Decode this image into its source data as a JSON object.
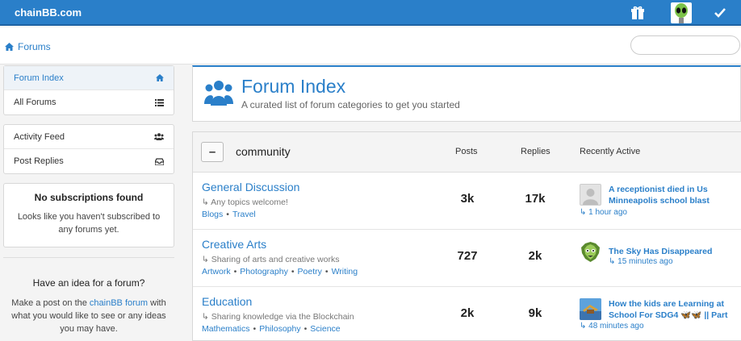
{
  "navbar": {
    "brand": "chainBB.com",
    "gift_icon": "gift-icon",
    "avatar_icon": "alien-avatar-icon",
    "check_icon": "check-icon",
    "accent": "#2a7fc9"
  },
  "breadcrumb": {
    "icon": "home-icon",
    "label": "Forums"
  },
  "search": {
    "placeholder": "",
    "value": ""
  },
  "sidebar": {
    "group1": [
      {
        "label": "Forum Index",
        "icon": "home-icon",
        "active": true
      },
      {
        "label": "All Forums",
        "icon": "list-icon",
        "active": false
      }
    ],
    "group2": [
      {
        "label": "Activity Feed",
        "icon": "users-icon"
      },
      {
        "label": "Post Replies",
        "icon": "inbox-icon"
      }
    ],
    "no_subs": {
      "title": "No subscriptions found",
      "text": "Looks like you haven't subscribed to any forums yet."
    },
    "idea": {
      "title": "Have an idea for a forum?",
      "text_before": "Make a post on the ",
      "link": "chainBB forum",
      "text_after": " with what you would like to see or any ideas you may have."
    }
  },
  "header": {
    "icon": "users-icon",
    "title": "Forum Index",
    "subtitle": "A curated list of forum categories to get you started"
  },
  "category": {
    "collapse_label": "–",
    "name": "community",
    "columns": {
      "posts": "Posts",
      "replies": "Replies",
      "recent": "Recently Active"
    },
    "forums": [
      {
        "name": "General Discussion",
        "description": "↳ Any topics welcome!",
        "tags": [
          "Blogs",
          "Travel"
        ],
        "posts": "3k",
        "replies": "17k",
        "recent_title": "A receptionist died in Us Minneapolis school blast",
        "recent_time": "↳ 1 hour ago",
        "recent_thumb": "default-user-icon"
      },
      {
        "name": "Creative Arts",
        "description": "↳ Sharing of arts and creative works",
        "tags": [
          "Artwork",
          "Photography",
          "Poetry",
          "Writing"
        ],
        "posts": "727",
        "replies": "2k",
        "recent_title": "The Sky Has Disappeared",
        "recent_time": "↳ 15 minutes ago",
        "recent_thumb": "green-mask-icon"
      },
      {
        "name": "Education",
        "description": "↳ Sharing knowledge via the Blockchain",
        "tags": [
          "Mathematics",
          "Philosophy",
          "Science"
        ],
        "posts": "2k",
        "replies": "9k",
        "recent_title": "How the kids are Learning at School For SDG4 🦋🦋 || Part",
        "recent_time": "↳ 48 minutes ago",
        "recent_thumb": "school-photo-icon"
      }
    ]
  }
}
